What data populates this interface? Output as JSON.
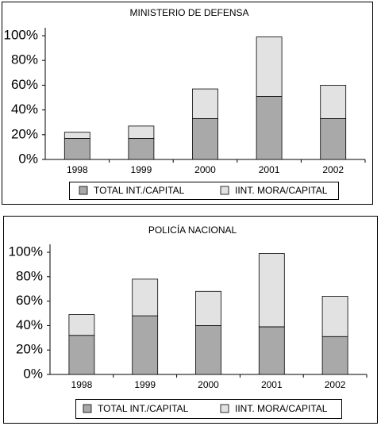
{
  "chart_data": [
    {
      "type": "bar",
      "stacked": true,
      "title": "MINISTERIO DE DEFENSA",
      "categories": [
        "1998",
        "1999",
        "2000",
        "2001",
        "2002"
      ],
      "series": [
        {
          "name": "TOTAL INT./CAPITAL",
          "color": "#a9a9a9",
          "values": [
            17,
            17,
            33,
            51,
            33
          ]
        },
        {
          "name": "IINT. MORA/CAPITAL",
          "color": "#e2e2e2",
          "values": [
            5,
            10,
            24,
            48,
            27
          ]
        }
      ],
      "ylim": [
        0,
        100
      ],
      "yticks": [
        {
          "value": 0,
          "label": "0%"
        },
        {
          "value": 20,
          "label": "20%"
        },
        {
          "value": 40,
          "label": "40%"
        },
        {
          "value": 60,
          "label": "60%"
        },
        {
          "value": 80,
          "label": "80%"
        },
        {
          "value": 100,
          "label": "100%"
        }
      ]
    },
    {
      "type": "bar",
      "stacked": true,
      "title": "POLICÍA NACIONAL",
      "categories": [
        "1998",
        "1999",
        "2000",
        "2001",
        "2002"
      ],
      "series": [
        {
          "name": "TOTAL INT./CAPITAL",
          "color": "#a9a9a9",
          "values": [
            32,
            48,
            40,
            39,
            31
          ]
        },
        {
          "name": "IINT. MORA/CAPITAL",
          "color": "#e2e2e2",
          "values": [
            17,
            30,
            28,
            60,
            33
          ]
        }
      ],
      "ylim": [
        0,
        100
      ],
      "yticks": [
        {
          "value": 0,
          "label": "0%"
        },
        {
          "value": 20,
          "label": "20%"
        },
        {
          "value": 40,
          "label": "40%"
        },
        {
          "value": 60,
          "label": "60%"
        },
        {
          "value": 80,
          "label": "80%"
        },
        {
          "value": 100,
          "label": "100%"
        }
      ]
    }
  ]
}
